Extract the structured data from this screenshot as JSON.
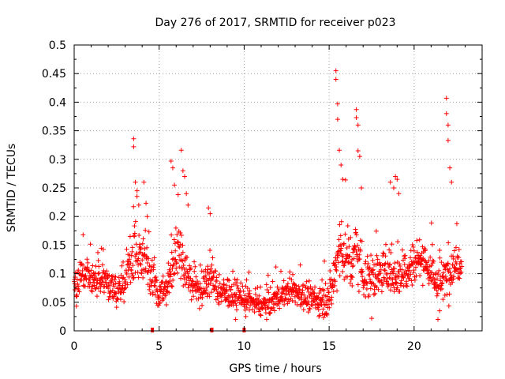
{
  "chart_data": {
    "type": "scatter",
    "title": "Day 276 of 2017, SRMTID for receiver p023",
    "xlabel": "GPS time / hours",
    "ylabel": "SRMTID / TECUs",
    "xlim": [
      0,
      24
    ],
    "ylim": [
      0,
      0.5
    ],
    "xticks": [
      0,
      5,
      10,
      15,
      20
    ],
    "xtick_labels": [
      "0",
      "5",
      "10",
      "15",
      "20"
    ],
    "yticks": [
      0,
      0.05,
      0.1,
      0.15,
      0.2,
      0.25,
      0.3,
      0.35,
      0.4,
      0.45,
      0.5
    ],
    "ytick_labels": [
      "0",
      "0.05",
      "0.1",
      "0.15",
      "0.2",
      "0.25",
      "0.3",
      "0.35",
      "0.4",
      "0.45",
      "0.5"
    ],
    "grid": true,
    "marker": "+",
    "color": "#ff0000",
    "data_gap_markers_x": [
      4.6,
      8.1,
      10.0
    ],
    "envelope": {
      "x": [
        0.0,
        0.5,
        1.0,
        1.5,
        2.0,
        2.5,
        3.0,
        3.3,
        3.6,
        3.9,
        4.2,
        4.5,
        5.0,
        5.5,
        5.8,
        6.1,
        6.4,
        6.8,
        7.2,
        7.6,
        8.0,
        8.5,
        9.0,
        9.5,
        10.0,
        10.5,
        11.0,
        11.5,
        12.0,
        12.5,
        13.0,
        13.5,
        14.0,
        14.5,
        15.0,
        15.3,
        15.6,
        16.0,
        16.3,
        16.6,
        17.0,
        17.5,
        18.0,
        18.5,
        19.0,
        19.5,
        20.0,
        20.5,
        21.0,
        21.5,
        22.0,
        22.5,
        22.8
      ],
      "y": [
        0.075,
        0.1,
        0.095,
        0.09,
        0.08,
        0.07,
        0.085,
        0.11,
        0.14,
        0.12,
        0.13,
        0.095,
        0.065,
        0.075,
        0.11,
        0.16,
        0.12,
        0.09,
        0.075,
        0.07,
        0.1,
        0.07,
        0.065,
        0.06,
        0.055,
        0.05,
        0.045,
        0.05,
        0.06,
        0.065,
        0.07,
        0.06,
        0.055,
        0.05,
        0.06,
        0.09,
        0.15,
        0.13,
        0.12,
        0.15,
        0.1,
        0.09,
        0.1,
        0.11,
        0.095,
        0.11,
        0.12,
        0.13,
        0.1,
        0.08,
        0.1,
        0.12,
        0.13
      ],
      "spread": [
        0.025,
        0.03,
        0.03,
        0.025,
        0.025,
        0.025,
        0.03,
        0.04,
        0.05,
        0.04,
        0.04,
        0.03,
        0.02,
        0.025,
        0.04,
        0.05,
        0.04,
        0.03,
        0.025,
        0.025,
        0.035,
        0.025,
        0.02,
        0.02,
        0.02,
        0.018,
        0.018,
        0.02,
        0.02,
        0.02,
        0.022,
        0.022,
        0.02,
        0.02,
        0.025,
        0.035,
        0.06,
        0.05,
        0.045,
        0.05,
        0.04,
        0.035,
        0.035,
        0.035,
        0.035,
        0.035,
        0.035,
        0.035,
        0.03,
        0.03,
        0.035,
        0.035,
        0.035
      ]
    },
    "peak_points": {
      "x": [
        3.5,
        3.5,
        3.6,
        3.7,
        3.8,
        4.1,
        4.3,
        5.7,
        5.8,
        5.9,
        6.3,
        6.4,
        6.5,
        6.6,
        6.7,
        7.9,
        8.0,
        15.4,
        15.4,
        15.5,
        15.5,
        15.6,
        15.7,
        15.8,
        16.6,
        16.6,
        16.7,
        16.7,
        16.8,
        16.9,
        18.6,
        18.8,
        18.9,
        19.0,
        19.1,
        21.9,
        21.9,
        22.0,
        22.0,
        22.1,
        22.2
      ],
      "y": [
        0.336,
        0.322,
        0.26,
        0.245,
        0.22,
        0.26,
        0.2,
        0.297,
        0.285,
        0.255,
        0.316,
        0.28,
        0.27,
        0.24,
        0.22,
        0.215,
        0.205,
        0.455,
        0.44,
        0.397,
        0.37,
        0.316,
        0.29,
        0.265,
        0.387,
        0.373,
        0.36,
        0.315,
        0.305,
        0.25,
        0.26,
        0.25,
        0.27,
        0.265,
        0.24,
        0.407,
        0.38,
        0.36,
        0.333,
        0.285,
        0.26
      ]
    },
    "low_points": {
      "x": [
        9.5,
        10.1,
        14.4,
        14.6,
        17.5,
        21.4,
        21.5
      ],
      "y": [
        0.02,
        0.025,
        0.025,
        0.03,
        0.022,
        0.02,
        0.035
      ]
    }
  }
}
